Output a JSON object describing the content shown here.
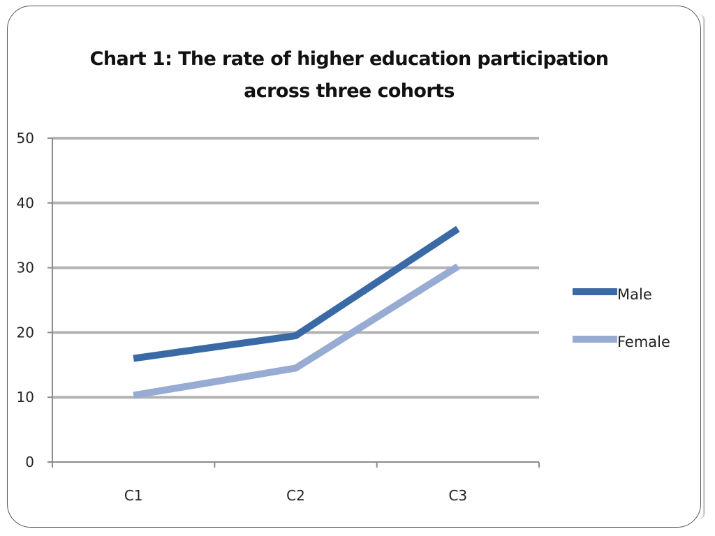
{
  "chart_data": {
    "type": "line",
    "title_line1": "Chart 1: The rate of higher education participation",
    "title_line2": "across three cohorts",
    "xlabel": "",
    "ylabel": "",
    "categories": [
      "C1",
      "C2",
      "C3"
    ],
    "ylim": [
      0,
      50
    ],
    "yticks": [
      "0",
      "10",
      "20",
      "30",
      "40",
      "50"
    ],
    "grid": true,
    "legend_position": "right",
    "series": [
      {
        "name": "Male",
        "values": [
          16,
          19.5,
          36
        ],
        "color": "#3a6aa6"
      },
      {
        "name": "Female",
        "values": [
          10.3,
          14.5,
          30.2
        ],
        "color": "#97abd3"
      }
    ]
  }
}
